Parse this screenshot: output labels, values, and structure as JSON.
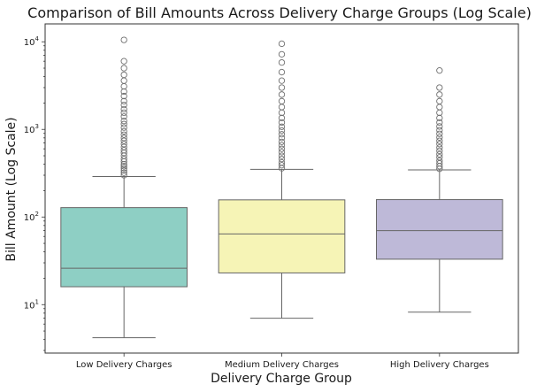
{
  "chart_data": {
    "type": "box",
    "title": "Comparison of Bill Amounts Across Delivery Charge Groups (Log Scale)",
    "xlabel": "Delivery Charge Group",
    "ylabel": "Bill Amount (Log Scale)",
    "yscale": "log",
    "ylim": [
      2.8,
      16000
    ],
    "yticks": [
      {
        "value": 10,
        "base": "10",
        "exp": "1"
      },
      {
        "value": 100,
        "base": "10",
        "exp": "2"
      },
      {
        "value": 1000,
        "base": "10",
        "exp": "3"
      },
      {
        "value": 10000,
        "base": "10",
        "exp": "4"
      }
    ],
    "grid": false,
    "legend": "none",
    "categories": [
      "Low Delivery Charges",
      "Medium Delivery Charges",
      "High Delivery Charges"
    ],
    "boxes": [
      {
        "category": "Low Delivery Charges",
        "color": "#8ecfc4",
        "whisker_low": 4.2,
        "q1": 16,
        "median": 26,
        "q3": 128,
        "whisker_high": 290,
        "outliers": [
          300,
          320,
          340,
          360,
          380,
          400,
          430,
          460,
          500,
          540,
          580,
          630,
          680,
          740,
          800,
          870,
          950,
          1050,
          1150,
          1250,
          1400,
          1550,
          1700,
          1900,
          2100,
          2400,
          2700,
          3100,
          3600,
          4200,
          5000,
          6000,
          10500
        ]
      },
      {
        "category": "Medium Delivery Charges",
        "color": "#f6f4b6",
        "whisker_low": 7,
        "q1": 23,
        "median": 64,
        "q3": 157,
        "whisker_high": 350,
        "outliers": [
          360,
          390,
          420,
          460,
          500,
          550,
          600,
          660,
          720,
          800,
          880,
          970,
          1070,
          1200,
          1350,
          1550,
          1800,
          2100,
          2500,
          3000,
          3600,
          4500,
          5800,
          7200,
          9500
        ]
      },
      {
        "category": "High Delivery Charges",
        "color": "#beb9d8",
        "whisker_low": 8.2,
        "q1": 33,
        "median": 70,
        "q3": 158,
        "whisker_high": 345,
        "outliers": [
          355,
          380,
          410,
          440,
          480,
          520,
          570,
          620,
          680,
          740,
          810,
          890,
          980,
          1080,
          1200,
          1350,
          1550,
          1800,
          2100,
          2500,
          3000,
          4700
        ]
      }
    ]
  }
}
